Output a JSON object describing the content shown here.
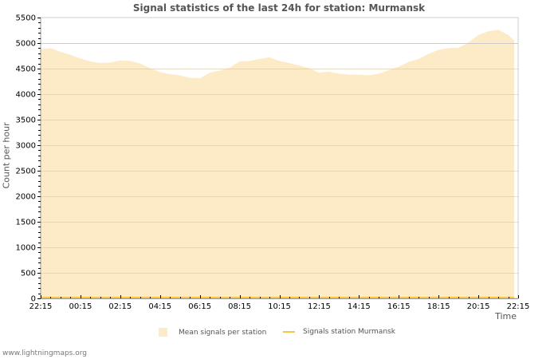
{
  "title": "Signal statistics of the last 24h for station: Murmansk",
  "axes": {
    "ylabel": "Count per hour",
    "xlabel": "Time"
  },
  "legend": {
    "mean_label": "Mean signals per station",
    "station_label": "Signals station Murmansk"
  },
  "footer": "www.lightningmaps.org",
  "colors": {
    "mean_fill": "#fdebc8",
    "station_line": "#f7c540",
    "grid": "#cccccc",
    "grid_4500": "#d6c29a"
  },
  "chart_data": {
    "type": "area",
    "title": "Signal statistics of the last 24h for station: Murmansk",
    "xlabel": "Time",
    "ylabel": "Count per hour",
    "ylim": [
      0,
      5500
    ],
    "yticks": [
      0,
      500,
      1000,
      1500,
      2000,
      2500,
      3000,
      3500,
      4000,
      4500,
      5000,
      5500
    ],
    "xticks": [
      "22:15",
      "00:15",
      "02:15",
      "04:15",
      "06:15",
      "08:15",
      "10:15",
      "12:15",
      "14:15",
      "16:15",
      "18:15",
      "20:15",
      "22:15"
    ],
    "grid": true,
    "legend_position": "bottom",
    "interval_minutes": 30,
    "series": [
      {
        "name": "Mean signals per station",
        "style": "area",
        "values": [
          4880,
          4900,
          4830,
          4770,
          4700,
          4640,
          4610,
          4620,
          4660,
          4650,
          4600,
          4510,
          4430,
          4390,
          4370,
          4320,
          4310,
          4420,
          4460,
          4520,
          4640,
          4650,
          4690,
          4720,
          4650,
          4610,
          4560,
          4510,
          4420,
          4440,
          4400,
          4380,
          4380,
          4370,
          4400,
          4470,
          4540,
          4630,
          4690,
          4790,
          4870,
          4900,
          4910,
          5010,
          5160,
          5230,
          5260,
          5160,
          5050,
          4950,
          4890
        ]
      },
      {
        "name": "Signals station Murmansk",
        "style": "line",
        "values": [
          0,
          0,
          0,
          0,
          0,
          0,
          0,
          0,
          0,
          0,
          0,
          0,
          0,
          0,
          0,
          0,
          0,
          0,
          0,
          0,
          0,
          0,
          0,
          0,
          0,
          0,
          0,
          0,
          0,
          0,
          0,
          0,
          0,
          0,
          0,
          0,
          0,
          0,
          0,
          0,
          0,
          0,
          0,
          0,
          0,
          0,
          0,
          0,
          0,
          0,
          0
        ]
      }
    ]
  }
}
